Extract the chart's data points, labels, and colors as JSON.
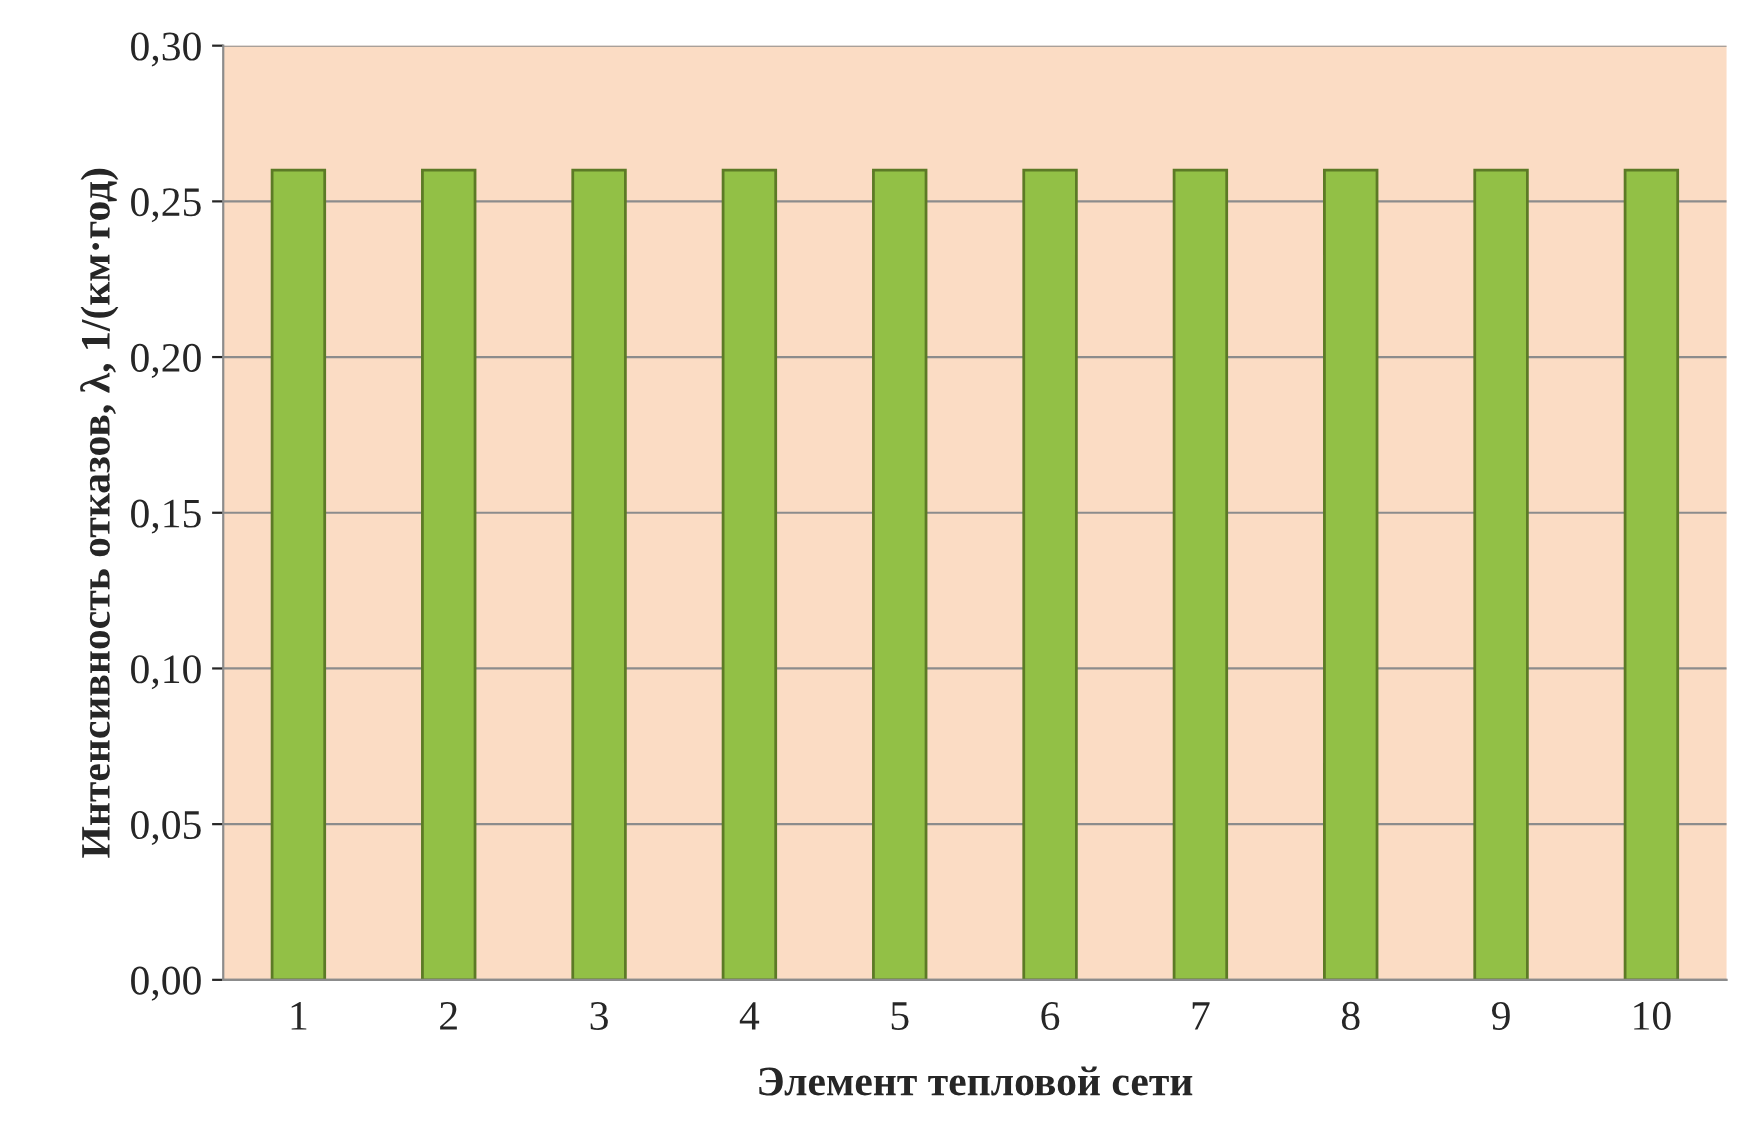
{
  "chart_data": {
    "type": "bar",
    "xlabel": "Элемент тепловой сети",
    "ylabel": "Интенсивность отказов, λ, 1/(км·год)",
    "categories": [
      "1",
      "2",
      "3",
      "4",
      "5",
      "6",
      "7",
      "8",
      "9",
      "10"
    ],
    "values": [
      0.26,
      0.26,
      0.26,
      0.26,
      0.26,
      0.26,
      0.26,
      0.26,
      0.26,
      0.26
    ],
    "color": "#92c046",
    "ylim": [
      0,
      0.3
    ],
    "yticks": [
      {
        "value": 0,
        "label": "0,00"
      },
      {
        "value": 0.05,
        "label": "0,05"
      },
      {
        "value": 0.1,
        "label": "0,10"
      },
      {
        "value": 0.15,
        "label": "0,15"
      },
      {
        "value": 0.2,
        "label": "0,20"
      },
      {
        "value": 0.25,
        "label": "0,25"
      },
      {
        "value": 0.3,
        "label": "0,30"
      }
    ],
    "grid": "y"
  }
}
